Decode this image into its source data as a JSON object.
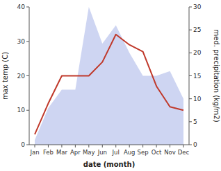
{
  "chart_data": {
    "type": "line",
    "categories": [
      "Jan",
      "Feb",
      "Mar",
      "Apr",
      "May",
      "Jun",
      "Jul",
      "Aug",
      "Sep",
      "Oct",
      "Nov",
      "Dec"
    ],
    "xlabel": "date (month)",
    "ylabel": "max temp (C)",
    "y2label": "med. precipitation (kg/m2)",
    "series": [
      {
        "type": "area",
        "color": "#c5cef0",
        "axis": "y2",
        "values": [
          1,
          8,
          12,
          12,
          30,
          22,
          26,
          20,
          15,
          15,
          16,
          10
        ]
      },
      {
        "type": "line",
        "color": "#c0392b",
        "values": [
          3,
          12,
          20,
          20,
          20,
          24,
          32,
          29,
          27,
          17,
          11,
          10
        ]
      }
    ],
    "ylim": [
      0,
      40
    ],
    "yticks": [
      0,
      10,
      20,
      30,
      40
    ],
    "y2lim": [
      0,
      30
    ],
    "y2ticks": [
      0,
      5,
      10,
      15,
      20,
      25,
      30
    ],
    "grid": false
  }
}
